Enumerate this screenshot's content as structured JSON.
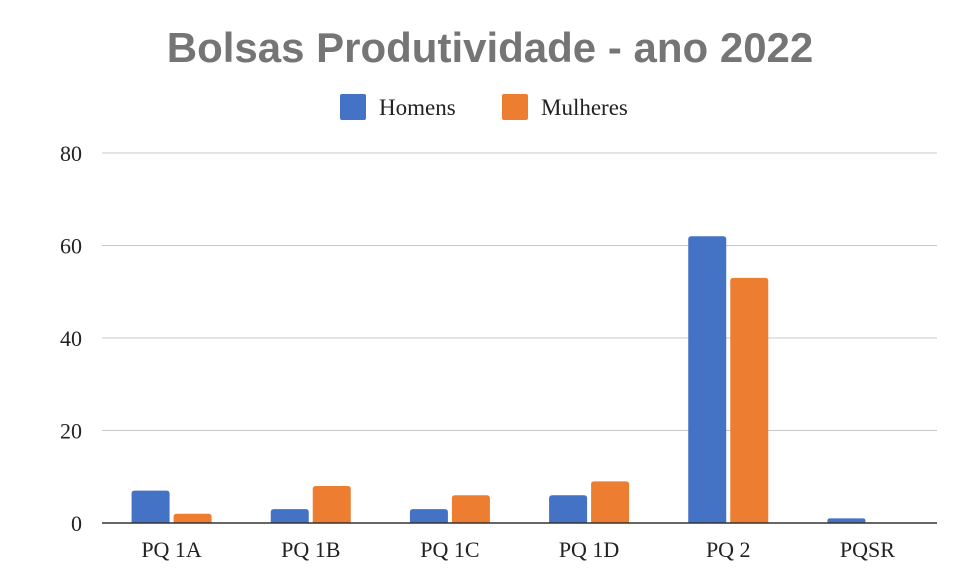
{
  "chart_data": {
    "type": "bar",
    "title": "Bolsas Produtividade - ano 2022",
    "categories": [
      "PQ 1A",
      "PQ 1B",
      "PQ 1C",
      "PQ 1D",
      "PQ 2",
      "PQSR"
    ],
    "series": [
      {
        "name": "Homens",
        "color": "#4472c4",
        "values": [
          7,
          3,
          3,
          6,
          62,
          1
        ]
      },
      {
        "name": "Mulheres",
        "color": "#ed7d31",
        "values": [
          2,
          8,
          6,
          9,
          53,
          0
        ]
      }
    ],
    "xlabel": "",
    "ylabel": "",
    "ylim": [
      0,
      80
    ],
    "yticks": [
      "0",
      "20",
      "40",
      "60",
      "80"
    ],
    "grid": true,
    "legend_position": "top-center"
  }
}
